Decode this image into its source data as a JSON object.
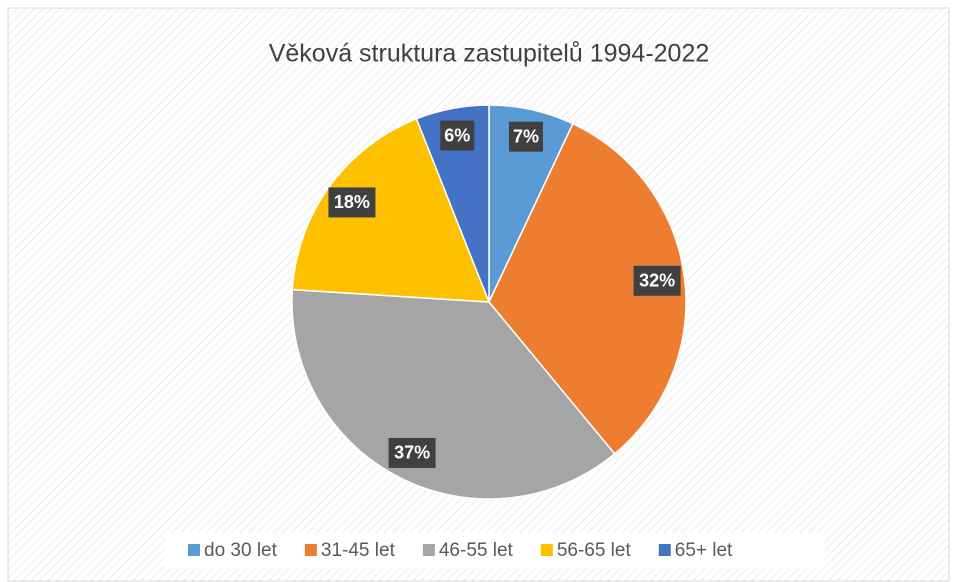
{
  "chart_data": {
    "type": "pie",
    "title": "Věková struktura zastupitelů 1994-2022",
    "categories": [
      "do 30 let",
      "31-45 let",
      "46-55 let",
      "56-65 let",
      "65+ let"
    ],
    "values": [
      7,
      32,
      37,
      18,
      6
    ],
    "value_labels": [
      "7%",
      "32%",
      "37%",
      "18%",
      "6%"
    ],
    "colors": [
      "#5b9bd5",
      "#ed7d31",
      "#a5a5a5",
      "#ffc000",
      "#4472c4"
    ],
    "legend": "bottom"
  }
}
